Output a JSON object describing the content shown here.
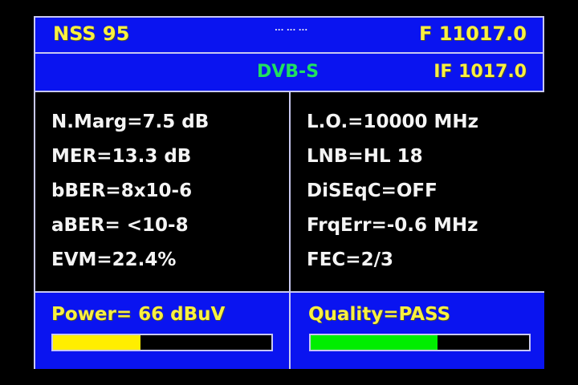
{
  "header": {
    "satellite": "NSS 95",
    "center": "... ... ...",
    "frequency": "F 11017.0"
  },
  "subheader": {
    "standard": "DVB-S",
    "if_freq": "IF 1017.0"
  },
  "left_params": [
    "N.Marg=7.5 dB",
    "MER=13.3 dB",
    "bBER=8x10-6",
    "aBER= <10-8",
    "EVM=22.4%"
  ],
  "right_params": [
    "L.O.=10000 MHz",
    "LNB=HL 18",
    "DiSEqC=OFF",
    "FrqErr=-0.6 MHz",
    "FEC=2/3"
  ],
  "power": {
    "label": "Power= 66 dBuV",
    "level_percent": 40,
    "color": "#ffee00"
  },
  "quality": {
    "label": "Quality=PASS",
    "level_percent": 58,
    "color": "#00ee00"
  },
  "colors": {
    "panel": "#0a14f0",
    "text": "#f8f040"
  }
}
